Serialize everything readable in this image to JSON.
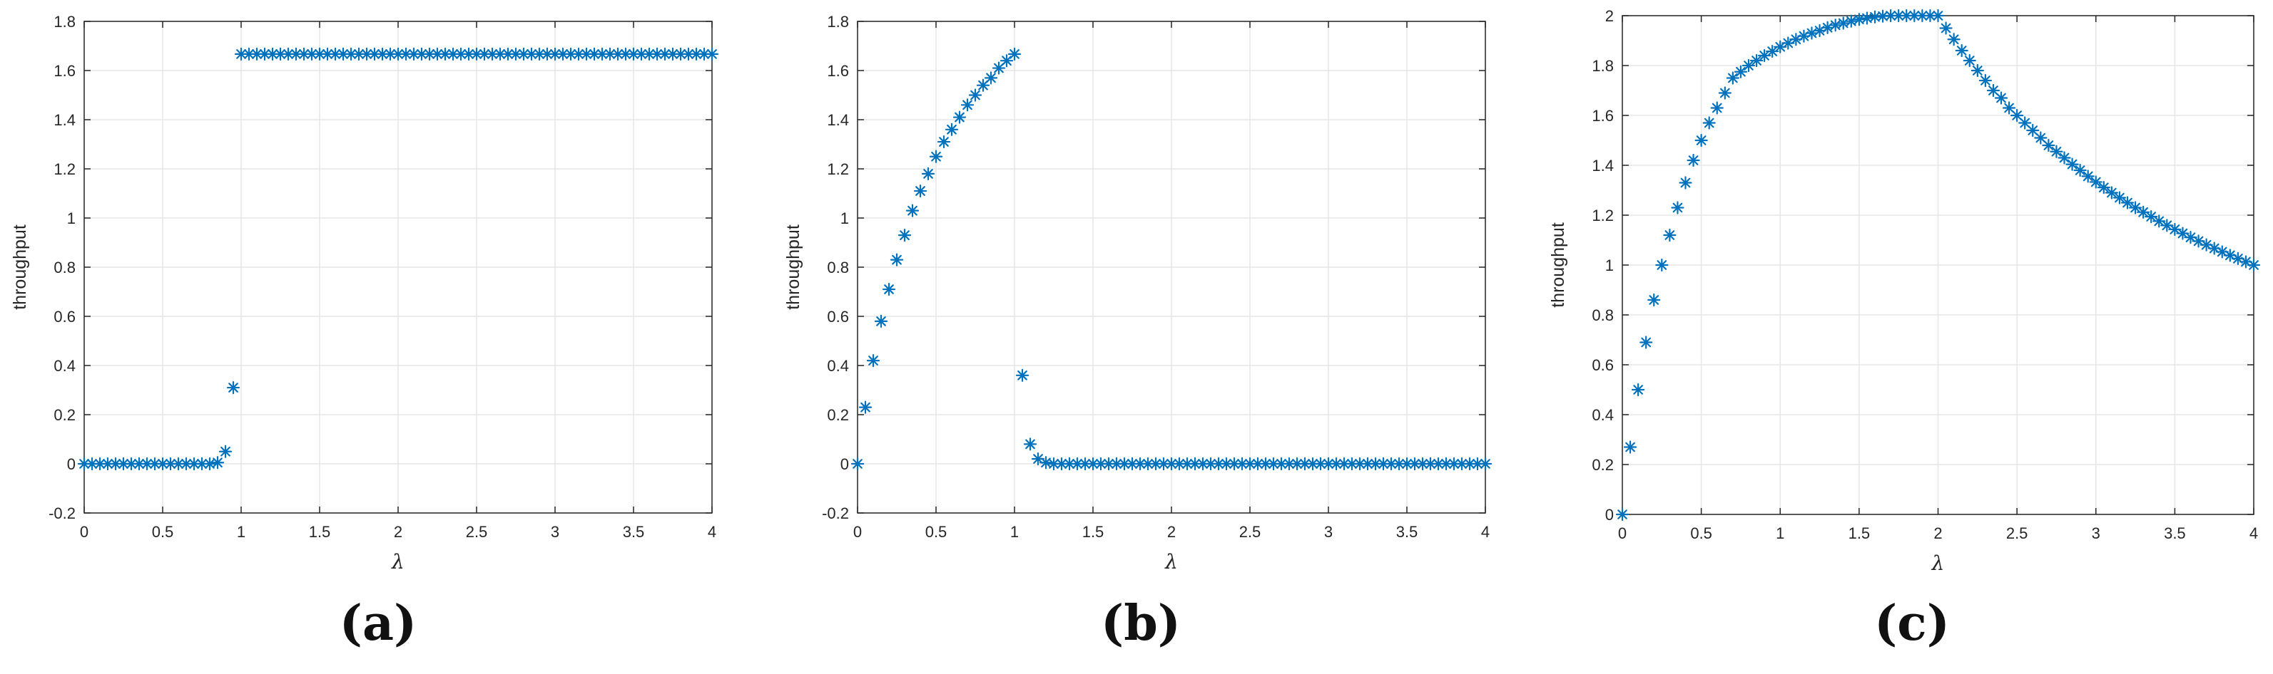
{
  "captions": [
    "(a)",
    "(b)",
    "(c)"
  ],
  "chart_data": [
    {
      "type": "scatter",
      "marker": "asterisk",
      "color": "#0072BD",
      "grid": true,
      "xlabel": "λ",
      "ylabel": "throughput",
      "xlim": [
        0,
        4
      ],
      "ylim": [
        -0.2,
        1.8
      ],
      "xticks": [
        0,
        0.5,
        1,
        1.5,
        2,
        2.5,
        3,
        3.5,
        4
      ],
      "xticklabels": [
        "0",
        "0.5",
        "1",
        "1.5",
        "2",
        "2.5",
        "3",
        "3.5",
        "4"
      ],
      "yticks": [
        -0.2,
        0,
        0.2,
        0.4,
        0.6,
        0.8,
        1,
        1.2,
        1.4,
        1.6,
        1.8
      ],
      "yticklabels": [
        "-0.2",
        "0",
        "0.2",
        "0.4",
        "0.6",
        "0.8",
        "1",
        "1.2",
        "1.4",
        "1.6",
        "1.8"
      ],
      "series": [
        {
          "x": [
            0,
            0.05,
            0.1,
            0.15,
            0.2,
            0.25,
            0.3,
            0.35,
            0.4,
            0.45,
            0.5,
            0.55,
            0.6,
            0.65,
            0.7,
            0.75,
            0.8,
            0.85,
            0.9,
            0.95,
            1,
            1.05,
            1.1,
            1.15,
            1.2,
            1.25,
            1.3,
            1.35,
            1.4,
            1.45,
            1.5,
            1.55,
            1.6,
            1.65,
            1.7,
            1.75,
            1.8,
            1.85,
            1.9,
            1.95,
            2,
            2.05,
            2.1,
            2.15,
            2.2,
            2.25,
            2.3,
            2.35,
            2.4,
            2.45,
            2.5,
            2.55,
            2.6,
            2.65,
            2.7,
            2.75,
            2.8,
            2.85,
            2.9,
            2.95,
            3,
            3.05,
            3.1,
            3.15,
            3.2,
            3.25,
            3.3,
            3.35,
            3.4,
            3.45,
            3.5,
            3.55,
            3.6,
            3.65,
            3.7,
            3.75,
            3.8,
            3.85,
            3.9,
            3.95,
            4
          ],
          "y": [
            0,
            0,
            0,
            0,
            0,
            0,
            0,
            0,
            0,
            0,
            0,
            0,
            0,
            0,
            0,
            0,
            0,
            0.005,
            0.05,
            0.31,
            1.667,
            1.667,
            1.667,
            1.667,
            1.667,
            1.667,
            1.667,
            1.667,
            1.667,
            1.667,
            1.667,
            1.667,
            1.667,
            1.667,
            1.667,
            1.667,
            1.667,
            1.667,
            1.667,
            1.667,
            1.667,
            1.667,
            1.667,
            1.667,
            1.667,
            1.667,
            1.667,
            1.667,
            1.667,
            1.667,
            1.667,
            1.667,
            1.667,
            1.667,
            1.667,
            1.667,
            1.667,
            1.667,
            1.667,
            1.667,
            1.667,
            1.667,
            1.667,
            1.667,
            1.667,
            1.667,
            1.667,
            1.667,
            1.667,
            1.667,
            1.667,
            1.667,
            1.667,
            1.667,
            1.667,
            1.667,
            1.667,
            1.667,
            1.667,
            1.667,
            1.667
          ]
        }
      ]
    },
    {
      "type": "scatter",
      "marker": "asterisk",
      "color": "#0072BD",
      "grid": true,
      "xlabel": "λ",
      "ylabel": "throughput",
      "xlim": [
        0,
        4
      ],
      "ylim": [
        -0.2,
        1.8
      ],
      "xticks": [
        0,
        0.5,
        1,
        1.5,
        2,
        2.5,
        3,
        3.5,
        4
      ],
      "xticklabels": [
        "0",
        "0.5",
        "1",
        "1.5",
        "2",
        "2.5",
        "3",
        "3.5",
        "4"
      ],
      "yticks": [
        -0.2,
        0,
        0.2,
        0.4,
        0.6,
        0.8,
        1,
        1.2,
        1.4,
        1.6,
        1.8
      ],
      "yticklabels": [
        "-0.2",
        "0",
        "0.2",
        "0.4",
        "0.6",
        "0.8",
        "1",
        "1.2",
        "1.4",
        "1.6",
        "1.8"
      ],
      "series": [
        {
          "x": [
            0,
            0.05,
            0.1,
            0.15,
            0.2,
            0.25,
            0.3,
            0.35,
            0.4,
            0.45,
            0.5,
            0.55,
            0.6,
            0.65,
            0.7,
            0.75,
            0.8,
            0.85,
            0.9,
            0.95,
            1,
            1.05,
            1.1,
            1.15,
            1.2,
            1.25,
            1.3,
            1.35,
            1.4,
            1.45,
            1.5,
            1.55,
            1.6,
            1.65,
            1.7,
            1.75,
            1.8,
            1.85,
            1.9,
            1.95,
            2,
            2.05,
            2.1,
            2.15,
            2.2,
            2.25,
            2.3,
            2.35,
            2.4,
            2.45,
            2.5,
            2.55,
            2.6,
            2.65,
            2.7,
            2.75,
            2.8,
            2.85,
            2.9,
            2.95,
            3,
            3.05,
            3.1,
            3.15,
            3.2,
            3.25,
            3.3,
            3.35,
            3.4,
            3.45,
            3.5,
            3.55,
            3.6,
            3.65,
            3.7,
            3.75,
            3.8,
            3.85,
            3.9,
            3.95,
            4
          ],
          "y": [
            0,
            0.23,
            0.42,
            0.58,
            0.71,
            0.83,
            0.93,
            1.03,
            1.11,
            1.18,
            1.25,
            1.31,
            1.36,
            1.41,
            1.46,
            1.5,
            1.54,
            1.57,
            1.61,
            1.64,
            1.667,
            0.36,
            0.08,
            0.02,
            0.005,
            0,
            0,
            0,
            0,
            0,
            0,
            0,
            0,
            0,
            0,
            0,
            0,
            0,
            0,
            0,
            0,
            0,
            0,
            0,
            0,
            0,
            0,
            0,
            0,
            0,
            0,
            0,
            0,
            0,
            0,
            0,
            0,
            0,
            0,
            0,
            0,
            0,
            0,
            0,
            0,
            0,
            0,
            0,
            0,
            0,
            0,
            0,
            0,
            0,
            0,
            0,
            0,
            0,
            0,
            0,
            0
          ]
        }
      ]
    },
    {
      "type": "scatter",
      "marker": "asterisk",
      "color": "#0072BD",
      "grid": true,
      "xlabel": "λ",
      "ylabel": "throughput",
      "xlim": [
        0,
        4
      ],
      "ylim": [
        0,
        2
      ],
      "xticks": [
        0,
        0.5,
        1,
        1.5,
        2,
        2.5,
        3,
        3.5,
        4
      ],
      "xticklabels": [
        "0",
        "0.5",
        "1",
        "1.5",
        "2",
        "2.5",
        "3",
        "3.5",
        "4"
      ],
      "yticks": [
        0,
        0.2,
        0.4,
        0.6,
        0.8,
        1,
        1.2,
        1.4,
        1.6,
        1.8,
        2
      ],
      "yticklabels": [
        "0",
        "0.2",
        "0.4",
        "0.6",
        "0.8",
        "1",
        "1.2",
        "1.4",
        "1.6",
        "1.8",
        "2"
      ],
      "series": [
        {
          "x": [
            0,
            0.05,
            0.1,
            0.15,
            0.2,
            0.25,
            0.3,
            0.35,
            0.4,
            0.45,
            0.5,
            0.55,
            0.6,
            0.65,
            0.7,
            0.75,
            0.8,
            0.85,
            0.9,
            0.95,
            1,
            1.05,
            1.1,
            1.15,
            1.2,
            1.25,
            1.3,
            1.35,
            1.4,
            1.45,
            1.5,
            1.55,
            1.6,
            1.65,
            1.7,
            1.75,
            1.8,
            1.85,
            1.9,
            1.95,
            2,
            2.05,
            2.1,
            2.15,
            2.2,
            2.25,
            2.3,
            2.35,
            2.4,
            2.45,
            2.5,
            2.55,
            2.6,
            2.65,
            2.7,
            2.75,
            2.8,
            2.85,
            2.9,
            2.95,
            3,
            3.05,
            3.1,
            3.15,
            3.2,
            3.25,
            3.3,
            3.35,
            3.4,
            3.45,
            3.5,
            3.55,
            3.6,
            3.65,
            3.7,
            3.75,
            3.8,
            3.85,
            3.9,
            3.95,
            4
          ],
          "y": [
            0,
            0.27,
            0.5,
            0.69,
            0.86,
            1.0,
            1.12,
            1.23,
            1.33,
            1.42,
            1.5,
            1.57,
            1.63,
            1.69,
            1.75,
            1.775,
            1.8,
            1.82,
            1.84,
            1.857,
            1.875,
            1.89,
            1.905,
            1.918,
            1.93,
            1.94,
            1.952,
            1.962,
            1.97,
            1.978,
            1.985,
            1.99,
            1.995,
            1.998,
            2.0,
            2.0,
            2.0,
            2.0,
            2.0,
            2.0,
            2.0,
            1.95,
            1.905,
            1.86,
            1.82,
            1.78,
            1.74,
            1.7,
            1.67,
            1.63,
            1.6,
            1.57,
            1.54,
            1.51,
            1.48,
            1.455,
            1.43,
            1.404,
            1.38,
            1.356,
            1.333,
            1.311,
            1.29,
            1.27,
            1.25,
            1.23,
            1.212,
            1.194,
            1.176,
            1.159,
            1.143,
            1.127,
            1.111,
            1.096,
            1.081,
            1.067,
            1.053,
            1.039,
            1.026,
            1.013,
            1.0
          ]
        }
      ]
    }
  ]
}
